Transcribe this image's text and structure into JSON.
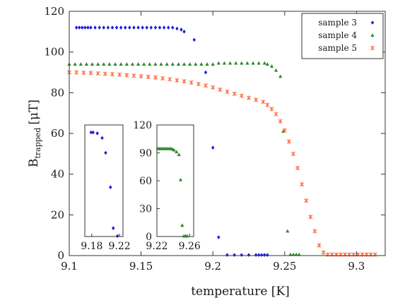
{
  "chart_data": [
    {
      "id": "main",
      "type": "scatter",
      "xlabel": "temperature [K]",
      "ylabel": "B",
      "ylabel_sub": "trapped",
      "ylabel_unit": "[μT]",
      "xlim": [
        9.1,
        9.32
      ],
      "ylim": [
        0,
        120
      ],
      "xticks": [
        9.1,
        9.15,
        9.2,
        9.25,
        9.3
      ],
      "xtick_labels": [
        "9.1",
        "9.15",
        "9.2",
        "9.25",
        "9.3"
      ],
      "yticks": [
        0,
        20,
        40,
        60,
        80,
        100,
        120
      ],
      "ytick_labels": [
        "0",
        "20",
        "40",
        "60",
        "80",
        "100",
        "120"
      ],
      "grid": false,
      "legend_position": "top-right",
      "series": [
        {
          "name": "sample 3",
          "marker": "diamond",
          "color": "#1a1adb",
          "x": [
            9.105,
            9.107,
            9.109,
            9.111,
            9.113,
            9.115,
            9.118,
            9.121,
            9.124,
            9.127,
            9.13,
            9.133,
            9.136,
            9.139,
            9.142,
            9.145,
            9.148,
            9.151,
            9.154,
            9.157,
            9.16,
            9.163,
            9.166,
            9.169,
            9.172,
            9.175,
            9.178,
            9.18,
            9.187,
            9.195,
            9.2,
            9.204,
            9.21,
            9.215,
            9.22,
            9.225,
            9.23,
            9.232,
            9.234,
            9.236,
            9.238
          ],
          "y": [
            112,
            112,
            112,
            112,
            112,
            112,
            112,
            112,
            112,
            112,
            112,
            112,
            112,
            112,
            112,
            112,
            112,
            112,
            112,
            112,
            112,
            112,
            112,
            112,
            112,
            111.5,
            111,
            110,
            106,
            90,
            53,
            9,
            0.3,
            0.3,
            0.3,
            0.3,
            0.3,
            0.3,
            0.3,
            0.3,
            0.3
          ]
        },
        {
          "name": "sample 4",
          "marker": "triangle",
          "color": "#2a8a2a",
          "x": [
            9.1,
            9.104,
            9.108,
            9.112,
            9.116,
            9.12,
            9.124,
            9.128,
            9.132,
            9.136,
            9.14,
            9.144,
            9.148,
            9.152,
            9.156,
            9.16,
            9.164,
            9.168,
            9.172,
            9.176,
            9.18,
            9.184,
            9.188,
            9.192,
            9.196,
            9.2,
            9.204,
            9.208,
            9.212,
            9.216,
            9.22,
            9.224,
            9.228,
            9.232,
            9.236,
            9.238,
            9.241,
            9.244,
            9.247,
            9.249,
            9.252,
            9.254,
            9.256,
            9.258,
            9.26
          ],
          "y": [
            94,
            94,
            94,
            94,
            94,
            94,
            94,
            94,
            94,
            94,
            94,
            94,
            94,
            94,
            94,
            94,
            94,
            94,
            94,
            94,
            94,
            94,
            94,
            94,
            94,
            94,
            94.5,
            94.5,
            94.5,
            94.5,
            94.5,
            94.5,
            94.5,
            94.5,
            94.5,
            94,
            93,
            91,
            88,
            61,
            12,
            0.5,
            0.5,
            0.5,
            0.5
          ]
        },
        {
          "name": "sample 5",
          "marker": "star",
          "color": "#ff6a3d",
          "x": [
            9.1,
            9.105,
            9.11,
            9.115,
            9.12,
            9.125,
            9.13,
            9.135,
            9.14,
            9.145,
            9.15,
            9.155,
            9.16,
            9.165,
            9.17,
            9.175,
            9.18,
            9.185,
            9.19,
            9.195,
            9.2,
            9.205,
            9.21,
            9.215,
            9.22,
            9.225,
            9.23,
            9.235,
            9.238,
            9.241,
            9.244,
            9.247,
            9.25,
            9.253,
            9.256,
            9.259,
            9.262,
            9.265,
            9.268,
            9.271,
            9.274,
            9.277,
            9.28,
            9.283,
            9.286,
            9.289,
            9.292,
            9.295,
            9.298,
            9.301,
            9.304,
            9.307,
            9.31,
            9.313
          ],
          "y": [
            90,
            90,
            89.8,
            89.7,
            89.5,
            89.3,
            89.1,
            88.9,
            88.6,
            88.4,
            88.1,
            87.8,
            87.5,
            87.1,
            86.6,
            86.1,
            85.6,
            85,
            84.3,
            83.5,
            82.6,
            81.5,
            80.5,
            79.5,
            78.5,
            77.5,
            76.5,
            75.5,
            74,
            72,
            69.5,
            66,
            61.5,
            56,
            50,
            43,
            35,
            27,
            19,
            12,
            5,
            1.5,
            0.5,
            0.5,
            0.5,
            0.5,
            0.5,
            0.5,
            0.5,
            0.5,
            0.5,
            0.5,
            0.5,
            0.5
          ]
        }
      ]
    },
    {
      "id": "inset1",
      "type": "scatter",
      "xlim": [
        9.17,
        9.225
      ],
      "ylim": [
        0,
        120
      ],
      "xticks": [
        9.18,
        9.22
      ],
      "xtick_labels": [
        "9.18",
        "9.22"
      ],
      "series": [
        {
          "name": "sample 3",
          "marker": "diamond",
          "color": "#1a1adb",
          "x": [
            9.179,
            9.182,
            9.188,
            9.195,
            9.2,
            9.207,
            9.211,
            9.217
          ],
          "y": [
            112,
            112,
            111,
            106,
            90,
            53,
            9,
            0.5
          ]
        }
      ]
    },
    {
      "id": "inset2",
      "type": "scatter",
      "xlim": [
        9.22,
        9.265
      ],
      "ylim": [
        0,
        120
      ],
      "xticks": [
        9.22,
        9.26
      ],
      "xtick_labels": [
        "9.22",
        "9.26"
      ],
      "yticks": [
        0,
        30,
        60,
        90,
        120
      ],
      "ytick_labels": [
        "0",
        "30",
        "60",
        "90",
        "120"
      ],
      "series": [
        {
          "name": "sample 4",
          "marker": "triangle",
          "color": "#2a8a2a",
          "x": [
            9.221,
            9.223,
            9.225,
            9.227,
            9.229,
            9.231,
            9.233,
            9.235,
            9.237,
            9.239,
            9.241,
            9.244,
            9.247,
            9.249,
            9.251,
            9.253,
            9.255,
            9.257
          ],
          "y": [
            94.5,
            94.5,
            94.5,
            94.5,
            94.5,
            94.5,
            94.5,
            94.5,
            94.5,
            94,
            93,
            91,
            88,
            61,
            12,
            0.5,
            0.5,
            0.5
          ]
        }
      ]
    }
  ]
}
